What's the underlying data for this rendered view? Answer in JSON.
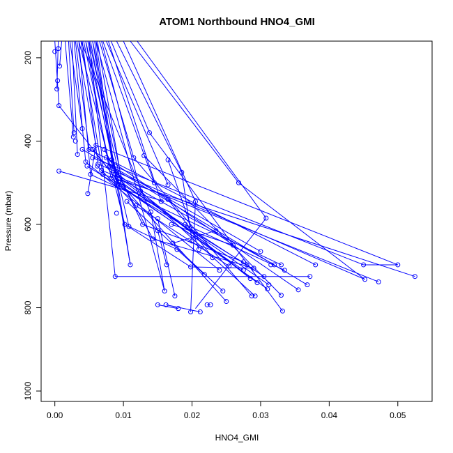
{
  "chart_data": {
    "type": "line",
    "title": "ATOM1 Northbound HNO4_GMI",
    "xlabel": "HNO4_GMI",
    "ylabel": "Pressure (mbar)",
    "xlim": [
      -0.002,
      0.055
    ],
    "ylim": [
      1025,
      160
    ],
    "y_reversed": true,
    "x_ticks": [
      "0.00",
      "0.01",
      "0.02",
      "0.03",
      "0.04",
      "0.05"
    ],
    "x_tick_values": [
      0,
      0.01,
      0.02,
      0.03,
      0.04,
      0.05
    ],
    "y_ticks": [
      "200",
      "400",
      "600",
      "800",
      "1000"
    ],
    "y_tick_values": [
      200,
      400,
      600,
      800,
      1000
    ],
    "grid": false,
    "series_color": "#0000ff",
    "points": [
      [
        0.0,
        185
      ],
      [
        0.0005,
        178
      ],
      [
        0.0007,
        220
      ],
      [
        0.0004,
        255
      ],
      [
        0.0003,
        275
      ],
      [
        0.0006,
        315
      ],
      [
        0.0006,
        472
      ],
      [
        0.0028,
        380
      ],
      [
        0.0027,
        390
      ],
      [
        0.003,
        400
      ],
      [
        0.0033,
        432
      ],
      [
        0.004,
        370
      ],
      [
        0.004,
        420
      ],
      [
        0.0045,
        450
      ],
      [
        0.0047,
        460
      ],
      [
        0.005,
        420
      ],
      [
        0.0052,
        480
      ],
      [
        0.0055,
        440
      ],
      [
        0.006,
        410
      ],
      [
        0.0063,
        455
      ],
      [
        0.0068,
        470
      ],
      [
        0.007,
        480
      ],
      [
        0.0075,
        440
      ],
      [
        0.008,
        460
      ],
      [
        0.0082,
        490
      ],
      [
        0.0085,
        470
      ],
      [
        0.0088,
        480
      ],
      [
        0.009,
        495
      ],
      [
        0.0092,
        505
      ],
      [
        0.0095,
        490
      ],
      [
        0.0098,
        500
      ],
      [
        0.01,
        510
      ],
      [
        0.0102,
        600
      ],
      [
        0.0105,
        545
      ],
      [
        0.0108,
        605
      ],
      [
        0.011,
        697
      ],
      [
        0.009,
        573
      ],
      [
        0.0115,
        440
      ],
      [
        0.0125,
        520
      ],
      [
        0.013,
        435
      ],
      [
        0.0138,
        380
      ],
      [
        0.014,
        570
      ],
      [
        0.0145,
        500
      ],
      [
        0.015,
        586
      ],
      [
        0.015,
        615
      ],
      [
        0.0155,
        545
      ],
      [
        0.016,
        760
      ],
      [
        0.0163,
        697
      ],
      [
        0.0165,
        445
      ],
      [
        0.0165,
        505
      ],
      [
        0.0165,
        540
      ],
      [
        0.017,
        600
      ],
      [
        0.0172,
        645
      ],
      [
        0.0175,
        772
      ],
      [
        0.015,
        793
      ],
      [
        0.0162,
        793
      ],
      [
        0.018,
        802
      ],
      [
        0.0185,
        475
      ],
      [
        0.019,
        600
      ],
      [
        0.02,
        640
      ],
      [
        0.0205,
        545
      ],
      [
        0.021,
        660
      ],
      [
        0.0198,
        810
      ],
      [
        0.0212,
        810
      ],
      [
        0.0222,
        793
      ],
      [
        0.0227,
        793
      ],
      [
        0.023,
        680
      ],
      [
        0.0235,
        615
      ],
      [
        0.024,
        710
      ],
      [
        0.0245,
        760
      ],
      [
        0.025,
        785
      ],
      [
        0.026,
        650
      ],
      [
        0.0268,
        500
      ],
      [
        0.0275,
        710
      ],
      [
        0.028,
        697
      ],
      [
        0.0285,
        730
      ],
      [
        0.0287,
        772
      ],
      [
        0.0292,
        772
      ],
      [
        0.0295,
        740
      ],
      [
        0.03,
        665
      ],
      [
        0.0305,
        725
      ],
      [
        0.0308,
        585
      ],
      [
        0.031,
        755
      ],
      [
        0.0312,
        745
      ],
      [
        0.0315,
        697
      ],
      [
        0.032,
        697
      ],
      [
        0.033,
        697
      ],
      [
        0.0335,
        710
      ],
      [
        0.033,
        770
      ],
      [
        0.0332,
        808
      ],
      [
        0.0355,
        757
      ],
      [
        0.0368,
        745
      ],
      [
        0.0372,
        725
      ],
      [
        0.038,
        697
      ],
      [
        0.045,
        697
      ],
      [
        0.0452,
        732
      ],
      [
        0.0472,
        738
      ],
      [
        0.05,
        697
      ],
      [
        0.0525,
        725
      ],
      [
        0.0088,
        725
      ],
      [
        0.0048,
        526
      ],
      [
        0.0055,
        420
      ],
      [
        0.0062,
        460
      ],
      [
        0.0072,
        420
      ],
      [
        0.0083,
        445
      ],
      [
        0.0093,
        498
      ],
      [
        0.0118,
        555
      ],
      [
        0.0128,
        600
      ],
      [
        0.0143,
        635
      ],
      [
        0.0178,
        660
      ],
      [
        0.0198,
        702
      ],
      [
        0.0218,
        720
      ],
      [
        0.0254,
        700
      ],
      [
        0.0275,
        690
      ],
      [
        0.029,
        705
      ]
    ],
    "segments": [
      [
        [
          0.0,
          160
        ],
        [
          0.0006,
          315
        ]
      ],
      [
        [
          0.0005,
          160
        ],
        [
          0.0003,
          275
        ]
      ],
      [
        [
          0.001,
          160
        ],
        [
          0.0007,
          220
        ]
      ],
      [
        [
          0.0015,
          160
        ],
        [
          0.0027,
          390
        ]
      ],
      [
        [
          0.002,
          160
        ],
        [
          0.0028,
          380
        ]
      ],
      [
        [
          0.0022,
          160
        ],
        [
          0.004,
          370
        ]
      ],
      [
        [
          0.0025,
          160
        ],
        [
          0.0033,
          432
        ]
      ],
      [
        [
          0.0028,
          160
        ],
        [
          0.0045,
          450
        ]
      ],
      [
        [
          0.003,
          160
        ],
        [
          0.005,
          420
        ]
      ],
      [
        [
          0.0032,
          160
        ],
        [
          0.006,
          410
        ]
      ],
      [
        [
          0.0035,
          160
        ],
        [
          0.0052,
          480
        ]
      ],
      [
        [
          0.0038,
          160
        ],
        [
          0.007,
          480
        ]
      ],
      [
        [
          0.004,
          160
        ],
        [
          0.0063,
          455
        ]
      ],
      [
        [
          0.0042,
          160
        ],
        [
          0.008,
          460
        ]
      ],
      [
        [
          0.0045,
          160
        ],
        [
          0.0082,
          490
        ]
      ],
      [
        [
          0.0048,
          160
        ],
        [
          0.009,
          495
        ]
      ],
      [
        [
          0.005,
          160
        ],
        [
          0.0095,
          490
        ]
      ],
      [
        [
          0.0052,
          160
        ],
        [
          0.0092,
          505
        ]
      ],
      [
        [
          0.0055,
          160
        ],
        [
          0.01,
          510
        ]
      ],
      [
        [
          0.0058,
          160
        ],
        [
          0.0085,
          470
        ]
      ],
      [
        [
          0.006,
          160
        ],
        [
          0.0088,
          480
        ]
      ],
      [
        [
          0.0062,
          160
        ],
        [
          0.0098,
          500
        ]
      ],
      [
        [
          0.0065,
          160
        ],
        [
          0.0115,
          440
        ]
      ],
      [
        [
          0.0068,
          160
        ],
        [
          0.0125,
          520
        ]
      ],
      [
        [
          0.007,
          160
        ],
        [
          0.0145,
          500
        ]
      ],
      [
        [
          0.0075,
          160
        ],
        [
          0.0165,
          505
        ]
      ],
      [
        [
          0.0078,
          160
        ],
        [
          0.0155,
          545
        ]
      ],
      [
        [
          0.0082,
          160
        ],
        [
          0.0138,
          380
        ]
      ],
      [
        [
          0.009,
          160
        ],
        [
          0.0185,
          475
        ]
      ],
      [
        [
          0.01,
          160
        ],
        [
          0.0205,
          545
        ]
      ],
      [
        [
          0.011,
          160
        ],
        [
          0.0268,
          500
        ]
      ],
      [
        [
          0.012,
          160
        ],
        [
          0.0308,
          585
        ]
      ],
      [
        [
          0.0035,
          160
        ],
        [
          0.0102,
          600
        ]
      ],
      [
        [
          0.0045,
          160
        ],
        [
          0.0108,
          605
        ]
      ],
      [
        [
          0.005,
          160
        ],
        [
          0.0088,
          725
        ]
      ],
      [
        [
          0.0055,
          160
        ],
        [
          0.011,
          697
        ]
      ],
      [
        [
          0.006,
          160
        ],
        [
          0.016,
          760
        ]
      ],
      [
        [
          0.0038,
          160
        ],
        [
          0.015,
          615
        ]
      ],
      [
        [
          0.0006,
          472
        ],
        [
          0.016,
          545
        ]
      ],
      [
        [
          0.0048,
          526
        ],
        [
          0.006,
          410
        ]
      ],
      [
        [
          0.0006,
          315
        ],
        [
          0.0093,
          498
        ]
      ],
      [
        [
          0.004,
          420
        ],
        [
          0.03,
          665
        ]
      ],
      [
        [
          0.0045,
          450
        ],
        [
          0.024,
          710
        ]
      ],
      [
        [
          0.0047,
          460
        ],
        [
          0.028,
          697
        ]
      ],
      [
        [
          0.005,
          420
        ],
        [
          0.038,
          697
        ]
      ],
      [
        [
          0.0052,
          480
        ],
        [
          0.033,
          697
        ]
      ],
      [
        [
          0.0055,
          440
        ],
        [
          0.045,
          697
        ]
      ],
      [
        [
          0.006,
          410
        ],
        [
          0.05,
          697
        ]
      ],
      [
        [
          0.0063,
          455
        ],
        [
          0.0452,
          732
        ]
      ],
      [
        [
          0.0068,
          470
        ],
        [
          0.0472,
          738
        ]
      ],
      [
        [
          0.007,
          480
        ],
        [
          0.0525,
          725
        ]
      ],
      [
        [
          0.0075,
          440
        ],
        [
          0.0355,
          757
        ]
      ],
      [
        [
          0.008,
          460
        ],
        [
          0.0368,
          745
        ]
      ],
      [
        [
          0.0082,
          490
        ],
        [
          0.031,
          755
        ]
      ],
      [
        [
          0.0085,
          470
        ],
        [
          0.0285,
          730
        ]
      ],
      [
        [
          0.0088,
          480
        ],
        [
          0.0295,
          740
        ]
      ],
      [
        [
          0.009,
          495
        ],
        [
          0.0305,
          725
        ]
      ],
      [
        [
          0.0092,
          505
        ],
        [
          0.0275,
          710
        ]
      ],
      [
        [
          0.0095,
          490
        ],
        [
          0.032,
          697
        ]
      ],
      [
        [
          0.0098,
          500
        ],
        [
          0.0312,
          745
        ]
      ],
      [
        [
          0.01,
          510
        ],
        [
          0.025,
          785
        ]
      ],
      [
        [
          0.0105,
          545
        ],
        [
          0.0245,
          760
        ]
      ],
      [
        [
          0.011,
          697
        ],
        [
          0.0092,
          505
        ]
      ],
      [
        [
          0.0088,
          725
        ],
        [
          0.0372,
          725
        ]
      ],
      [
        [
          0.0115,
          440
        ],
        [
          0.0287,
          772
        ]
      ],
      [
        [
          0.0125,
          520
        ],
        [
          0.0292,
          772
        ]
      ],
      [
        [
          0.013,
          435
        ],
        [
          0.033,
          770
        ]
      ],
      [
        [
          0.0138,
          380
        ],
        [
          0.0332,
          808
        ]
      ],
      [
        [
          0.014,
          570
        ],
        [
          0.016,
          760
        ]
      ],
      [
        [
          0.015,
          586
        ],
        [
          0.0175,
          772
        ]
      ],
      [
        [
          0.015,
          615
        ],
        [
          0.0163,
          697
        ]
      ],
      [
        [
          0.0165,
          445
        ],
        [
          0.021,
          660
        ]
      ],
      [
        [
          0.0165,
          540
        ],
        [
          0.023,
          680
        ]
      ],
      [
        [
          0.017,
          600
        ],
        [
          0.026,
          650
        ]
      ],
      [
        [
          0.0172,
          645
        ],
        [
          0.0235,
          615
        ]
      ],
      [
        [
          0.0185,
          475
        ],
        [
          0.02,
          640
        ]
      ],
      [
        [
          0.019,
          600
        ],
        [
          0.0335,
          710
        ]
      ],
      [
        [
          0.0205,
          545
        ],
        [
          0.0198,
          810
        ]
      ],
      [
        [
          0.0308,
          585
        ],
        [
          0.0205,
          802
        ]
      ],
      [
        [
          0.015,
          793
        ],
        [
          0.018,
          802
        ]
      ],
      [
        [
          0.0162,
          793
        ],
        [
          0.0212,
          810
        ]
      ],
      [
        [
          0.0222,
          793
        ],
        [
          0.0227,
          793
        ]
      ],
      [
        [
          0.045,
          697
        ],
        [
          0.05,
          697
        ]
      ],
      [
        [
          0.0268,
          500
        ],
        [
          0.0452,
          732
        ]
      ],
      [
        [
          0.0118,
          555
        ],
        [
          0.0254,
          700
        ]
      ],
      [
        [
          0.0128,
          600
        ],
        [
          0.0275,
          690
        ]
      ],
      [
        [
          0.0143,
          635
        ],
        [
          0.029,
          705
        ]
      ],
      [
        [
          0.0178,
          660
        ],
        [
          0.0218,
          720
        ]
      ],
      [
        [
          0.0198,
          702
        ],
        [
          0.029,
          705
        ]
      ],
      [
        [
          0.0102,
          600
        ],
        [
          0.0198,
          702
        ]
      ],
      [
        [
          0.0108,
          605
        ],
        [
          0.0178,
          660
        ]
      ],
      [
        [
          0.0072,
          420
        ],
        [
          0.0143,
          635
        ]
      ],
      [
        [
          0.0083,
          445
        ],
        [
          0.0128,
          600
        ]
      ],
      [
        [
          0.0062,
          460
        ],
        [
          0.0118,
          555
        ]
      ],
      [
        [
          0.0055,
          420
        ],
        [
          0.0093,
          498
        ]
      ]
    ]
  }
}
